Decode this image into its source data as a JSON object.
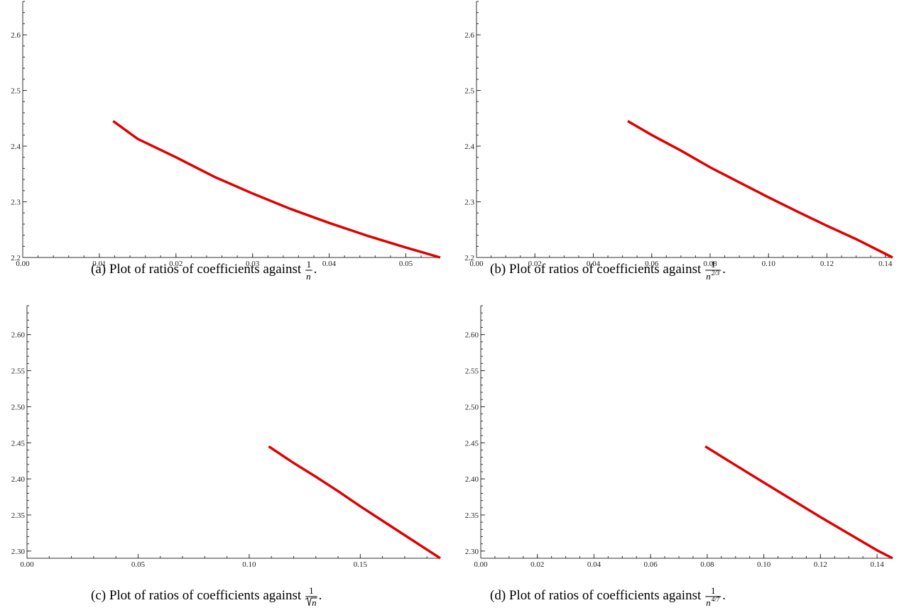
{
  "chart_data": [
    {
      "type": "line",
      "caption": "(a) Plot of ratios of coefficients against",
      "caption_math": {
        "num": "1",
        "den": "n"
      },
      "xlim": [
        0,
        0.0545
      ],
      "ylim": [
        2.2,
        2.66
      ],
      "x_ticks": [
        "0.00",
        "0.01",
        "0.02",
        "0.03",
        "0.04",
        "0.05"
      ],
      "x_tick_values": [
        0,
        0.01,
        0.02,
        0.03,
        0.04,
        0.05
      ],
      "x_minor_step": 0.002,
      "y_ticks": [
        "2.2",
        "2.3",
        "2.4",
        "2.5",
        "2.6"
      ],
      "y_tick_values": [
        2.2,
        2.3,
        2.4,
        2.5,
        2.6
      ],
      "y_minor_step": 0.02,
      "series": [
        {
          "color": "#e00000",
          "x": [
            0.0118,
            0.015,
            0.02,
            0.025,
            0.03,
            0.035,
            0.04,
            0.045,
            0.05,
            0.0545
          ],
          "y": [
            2.445,
            2.413,
            2.38,
            2.345,
            2.315,
            2.287,
            2.262,
            2.239,
            2.218,
            2.2
          ]
        }
      ]
    },
    {
      "type": "line",
      "caption": "(b) Plot of ratios of coefficients against",
      "caption_math": {
        "num": "1",
        "den": "n",
        "exp": "2/3"
      },
      "xlim": [
        0,
        0.1425
      ],
      "ylim": [
        2.2,
        2.66
      ],
      "x_ticks": [
        "0.00",
        "0.02",
        "0.04",
        "0.06",
        "0.08",
        "0.10",
        "0.12",
        "0.14"
      ],
      "x_tick_values": [
        0,
        0.02,
        0.04,
        0.06,
        0.08,
        0.1,
        0.12,
        0.14
      ],
      "x_minor_step": 0.005,
      "y_ticks": [
        "2.2",
        "2.3",
        "2.4",
        "2.5",
        "2.6"
      ],
      "y_tick_values": [
        2.2,
        2.3,
        2.4,
        2.5,
        2.6
      ],
      "y_minor_step": 0.02,
      "series": [
        {
          "color": "#e00000",
          "x": [
            0.0518,
            0.06,
            0.07,
            0.08,
            0.09,
            0.1,
            0.11,
            0.12,
            0.13,
            0.1425
          ],
          "y": [
            2.445,
            2.42,
            2.392,
            2.362,
            2.335,
            2.308,
            2.282,
            2.257,
            2.233,
            2.2
          ]
        }
      ]
    },
    {
      "type": "line",
      "caption": "(c) Plot of ratios of coefficients against",
      "caption_math": {
        "num": "1",
        "den": "n",
        "sqrt": true
      },
      "xlim": [
        0,
        0.186
      ],
      "ylim": [
        2.29,
        2.64
      ],
      "x_ticks": [
        "0.00",
        "0.05",
        "0.10",
        "0.15"
      ],
      "x_tick_values": [
        0,
        0.05,
        0.1,
        0.15
      ],
      "x_minor_step": 0.01,
      "y_ticks": [
        "2.30",
        "2.35",
        "2.40",
        "2.45",
        "2.50",
        "2.55",
        "2.60"
      ],
      "y_tick_values": [
        2.3,
        2.35,
        2.4,
        2.45,
        2.5,
        2.55,
        2.6
      ],
      "y_minor_step": 0.01,
      "series": [
        {
          "color": "#e00000",
          "x": [
            0.1088,
            0.12,
            0.13,
            0.14,
            0.15,
            0.16,
            0.17,
            0.18,
            0.186
          ],
          "y": [
            2.445,
            2.422,
            2.403,
            2.383,
            2.362,
            2.342,
            2.322,
            2.302,
            2.29
          ]
        }
      ]
    },
    {
      "type": "line",
      "caption": "(d) Plot of ratios of coefficients against",
      "caption_math": {
        "num": "1",
        "den": "n",
        "exp": "4/7"
      },
      "xlim": [
        0,
        0.1455
      ],
      "ylim": [
        2.29,
        2.64
      ],
      "x_ticks": [
        "0.00",
        "0.02",
        "0.04",
        "0.06",
        "0.08",
        "0.10",
        "0.12",
        "0.14"
      ],
      "x_tick_values": [
        0,
        0.02,
        0.04,
        0.06,
        0.08,
        0.1,
        0.12,
        0.14
      ],
      "x_minor_step": 0.005,
      "y_ticks": [
        "2.30",
        "2.35",
        "2.40",
        "2.45",
        "2.50",
        "2.55",
        "2.60"
      ],
      "y_tick_values": [
        2.3,
        2.35,
        2.4,
        2.45,
        2.5,
        2.55,
        2.6
      ],
      "y_minor_step": 0.01,
      "series": [
        {
          "color": "#e00000",
          "x": [
            0.0793,
            0.09,
            0.1,
            0.11,
            0.12,
            0.13,
            0.14,
            0.1455
          ],
          "y": [
            2.445,
            2.419,
            2.395,
            2.371,
            2.347,
            2.324,
            2.301,
            2.29
          ]
        }
      ]
    }
  ]
}
